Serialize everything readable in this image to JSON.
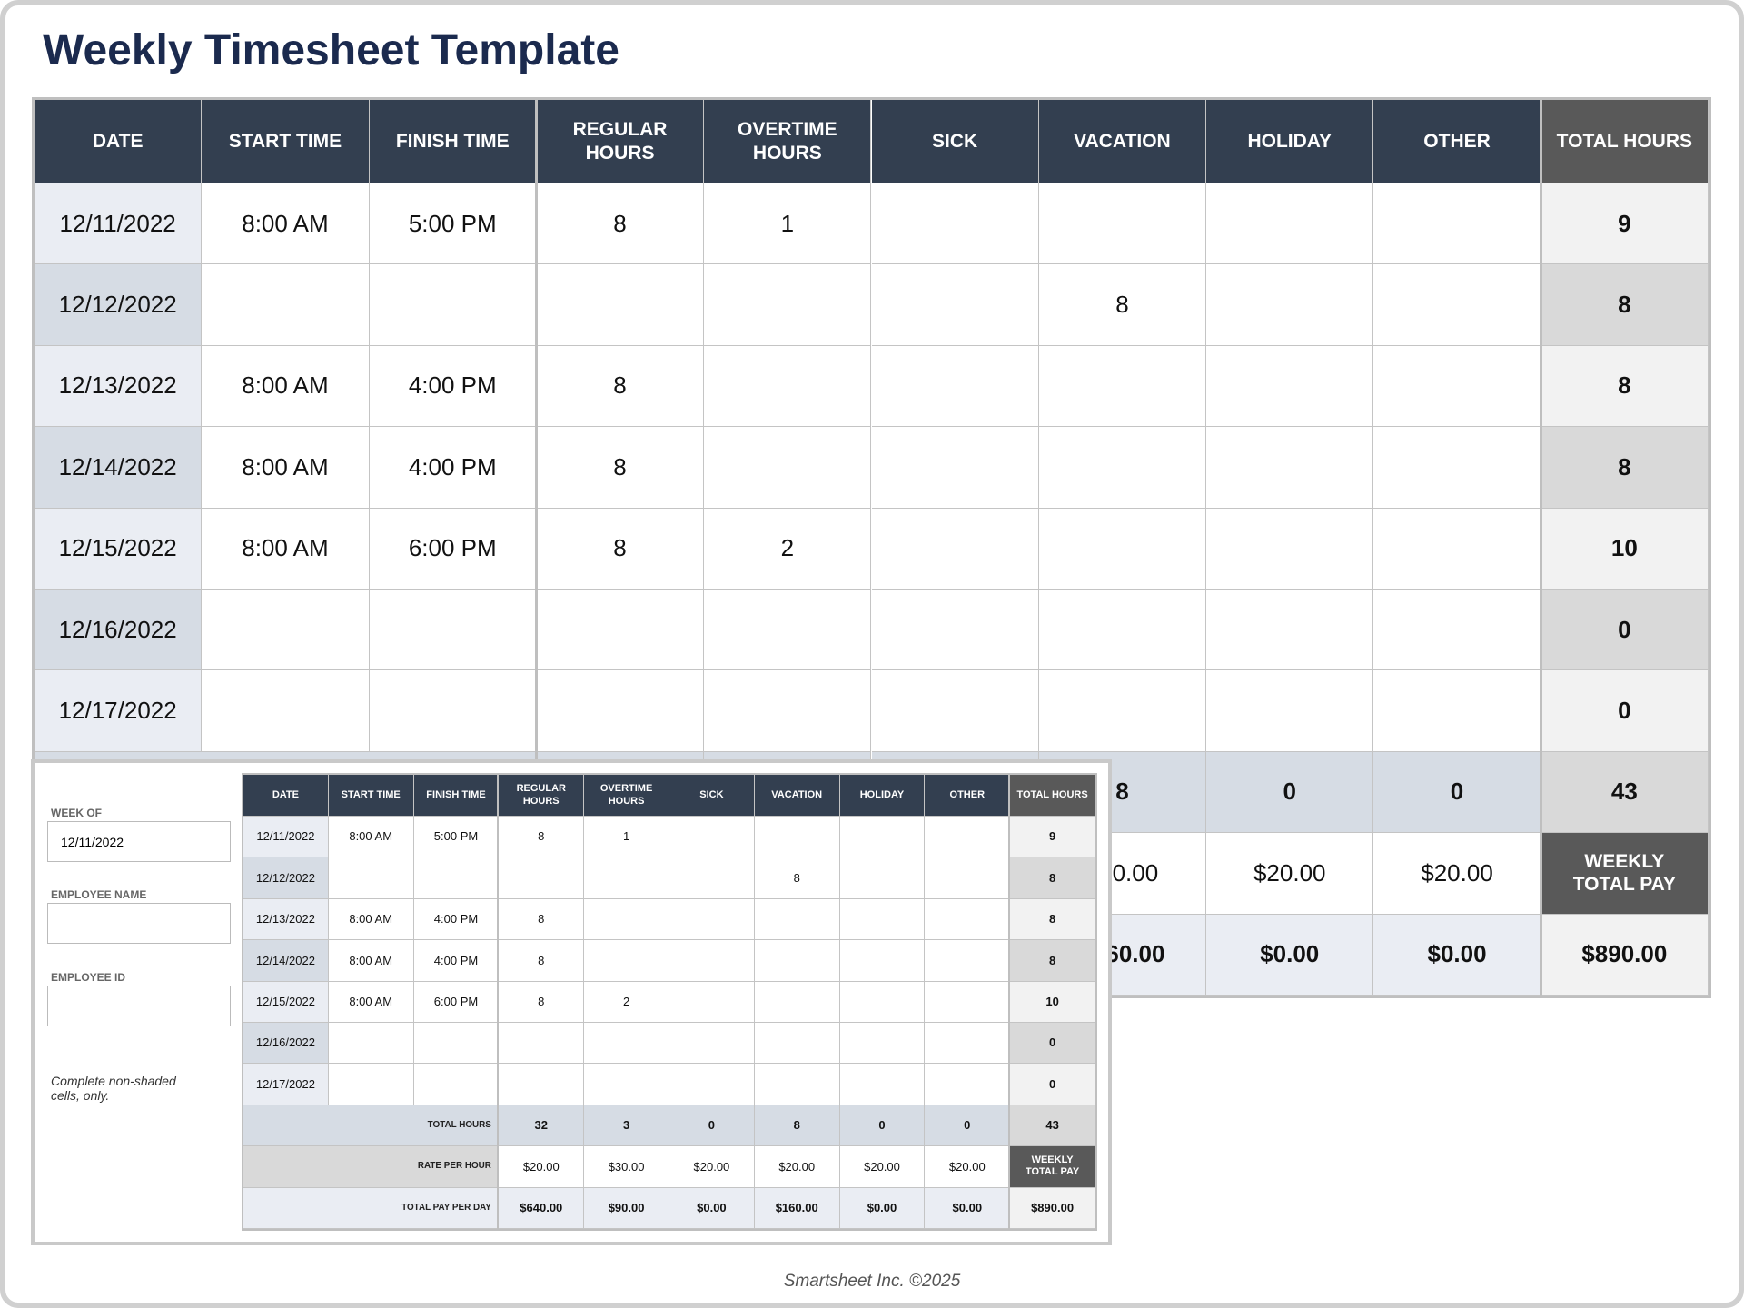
{
  "title": "Weekly Timesheet Template",
  "table": {
    "headers": [
      "DATE",
      "START TIME",
      "FINISH TIME",
      "REGULAR HOURS",
      "OVERTIME HOURS",
      "SICK",
      "VACATION",
      "HOLIDAY",
      "OTHER",
      "TOTAL HOURS"
    ],
    "rows": [
      [
        "12/11/2022",
        "8:00 AM",
        "5:00 PM",
        8,
        1,
        null,
        null,
        null,
        null,
        9
      ],
      [
        "12/12/2022",
        null,
        null,
        null,
        null,
        null,
        8,
        null,
        null,
        8
      ],
      [
        "12/13/2022",
        "8:00 AM",
        "4:00 PM",
        8,
        null,
        null,
        null,
        null,
        null,
        8
      ],
      [
        "12/14/2022",
        "8:00 AM",
        "4:00 PM",
        8,
        null,
        null,
        null,
        null,
        null,
        8
      ],
      [
        "12/15/2022",
        "8:00 AM",
        "6:00 PM",
        8,
        2,
        null,
        null,
        null,
        null,
        10
      ],
      [
        "12/16/2022",
        null,
        null,
        null,
        null,
        null,
        null,
        null,
        null,
        0
      ],
      [
        "12/17/2022",
        null,
        null,
        null,
        null,
        null,
        null,
        null,
        null,
        0
      ]
    ],
    "total_hours": {
      "label": "TOTAL HOURS",
      "values": [
        32,
        3,
        0,
        8,
        0,
        0,
        43
      ]
    },
    "rate": {
      "label": "RATE PER HOUR",
      "values": [
        "$20.00",
        "$30.00",
        "$20.00",
        "$20.00",
        "$20.00",
        "$20.00"
      ],
      "weekly_label": "WEEKLY TOTAL PAY"
    },
    "pay": {
      "label": "TOTAL PAY PER DAY",
      "values": [
        "$640.00",
        "$90.00",
        "$0.00",
        "$160.00",
        "$0.00",
        "$0.00",
        "$890.00"
      ]
    }
  },
  "form": {
    "week_of_label": "WEEK OF",
    "week_of": "12/11/2022",
    "employee_name_label": "EMPLOYEE NAME",
    "employee_id_label": "EMPLOYEE ID",
    "note": "Complete non-shaded cells, only."
  },
  "footer": "Smartsheet Inc. ©2025"
}
